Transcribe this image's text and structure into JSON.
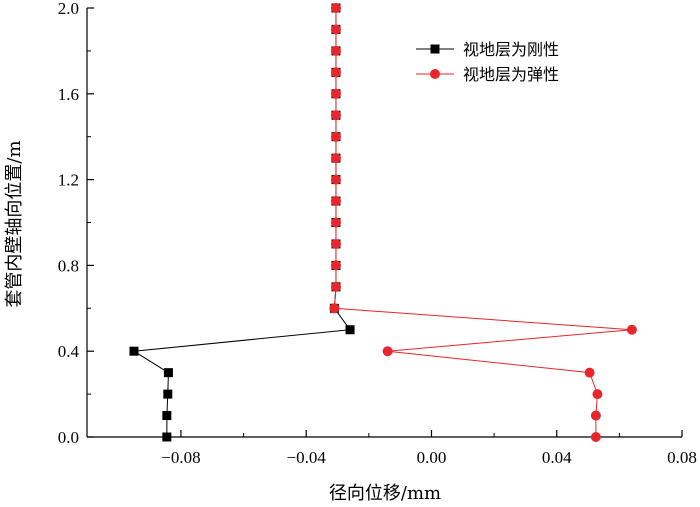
{
  "chart_data": {
    "type": "line",
    "xlabel": "径向位移/mm",
    "ylabel": "套管内壁轴向位置/m",
    "xlim": [
      -0.11,
      0.08
    ],
    "ylim": [
      0.0,
      2.0
    ],
    "xticks": [
      -0.08,
      -0.04,
      0.0,
      0.04,
      0.08
    ],
    "xtick_labels": [
      "−0.08",
      "−0.04",
      "0.00",
      "0.04",
      "0.08"
    ],
    "yticks": [
      0.0,
      0.4,
      0.8,
      1.2,
      1.6,
      2.0
    ],
    "ytick_labels": [
      "0.0",
      "0.4",
      "0.8",
      "1.2",
      "1.6",
      "2.0"
    ],
    "grid": false,
    "legend_position": "top-right",
    "series": [
      {
        "name": "视地层为刚性",
        "color": "#000000",
        "marker": "square",
        "points": [
          {
            "x": -0.0845,
            "y": 0.0
          },
          {
            "x": -0.0845,
            "y": 0.1
          },
          {
            "x": -0.0842,
            "y": 0.2
          },
          {
            "x": -0.084,
            "y": 0.3
          },
          {
            "x": -0.095,
            "y": 0.4
          },
          {
            "x": -0.026,
            "y": 0.5
          },
          {
            "x": -0.031,
            "y": 0.6
          },
          {
            "x": -0.0305,
            "y": 0.7
          },
          {
            "x": -0.0305,
            "y": 0.8
          },
          {
            "x": -0.0305,
            "y": 0.9
          },
          {
            "x": -0.0305,
            "y": 1.0
          },
          {
            "x": -0.0305,
            "y": 1.1
          },
          {
            "x": -0.0305,
            "y": 1.2
          },
          {
            "x": -0.0305,
            "y": 1.3
          },
          {
            "x": -0.0305,
            "y": 1.4
          },
          {
            "x": -0.0305,
            "y": 1.5
          },
          {
            "x": -0.0305,
            "y": 1.6
          },
          {
            "x": -0.0305,
            "y": 1.7
          },
          {
            "x": -0.0305,
            "y": 1.8
          },
          {
            "x": -0.0305,
            "y": 1.9
          },
          {
            "x": -0.0305,
            "y": 2.0
          }
        ]
      },
      {
        "name": "视地层为弹性",
        "color": "#e8262b",
        "marker": "circle",
        "points": [
          {
            "x": 0.0525,
            "y": 0.0
          },
          {
            "x": 0.0525,
            "y": 0.1
          },
          {
            "x": 0.053,
            "y": 0.2
          },
          {
            "x": 0.0505,
            "y": 0.3
          },
          {
            "x": -0.014,
            "y": 0.4
          },
          {
            "x": 0.064,
            "y": 0.5
          },
          {
            "x": -0.031,
            "y": 0.6
          },
          {
            "x": -0.0305,
            "y": 0.7
          },
          {
            "x": -0.0305,
            "y": 0.8
          },
          {
            "x": -0.0305,
            "y": 0.9
          },
          {
            "x": -0.0305,
            "y": 1.0
          },
          {
            "x": -0.0305,
            "y": 1.1
          },
          {
            "x": -0.0305,
            "y": 1.2
          },
          {
            "x": -0.0305,
            "y": 1.3
          },
          {
            "x": -0.0305,
            "y": 1.4
          },
          {
            "x": -0.0305,
            "y": 1.5
          },
          {
            "x": -0.0305,
            "y": 1.6
          },
          {
            "x": -0.0305,
            "y": 1.7
          },
          {
            "x": -0.0305,
            "y": 1.8
          },
          {
            "x": -0.0305,
            "y": 1.9
          },
          {
            "x": -0.0305,
            "y": 2.0
          }
        ]
      }
    ]
  }
}
